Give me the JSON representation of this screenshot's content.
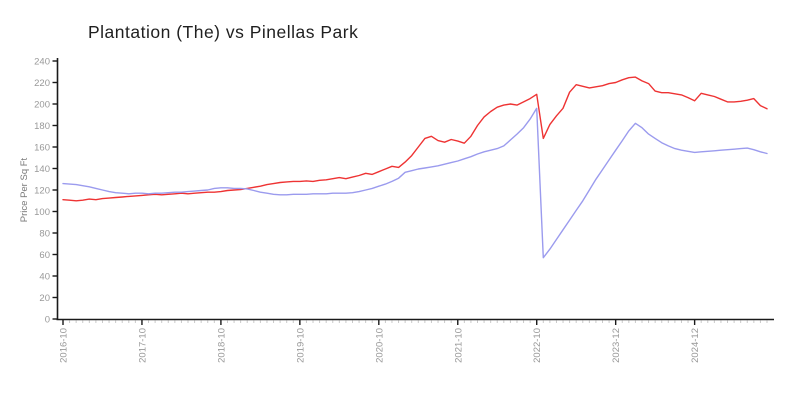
{
  "chart_data": {
    "type": "line",
    "title": "Plantation (The) vs Pinellas Park",
    "ylabel": "Price Per Sq Ft",
    "xlabel": "",
    "grid": false,
    "legend": "none",
    "ylim": [
      0,
      240
    ],
    "y_tick_step": 20,
    "x_tick_labels": [
      "2016-10",
      "2017-10",
      "2018-10",
      "2019-10",
      "2020-10",
      "2021-10",
      "2022-10",
      "2023-12",
      "2024-12"
    ],
    "x_tick_interval": 12,
    "n_points": 108,
    "axis_color": "#1a1a1a",
    "minor_tick_color": "#c9c9c9",
    "tick_label_color": "#999999",
    "series": [
      {
        "name": "Plantation (The)",
        "color": "#ee3333",
        "values": [
          111,
          110.5,
          110,
          110.5,
          111.5,
          111,
          112,
          112.5,
          113,
          113.5,
          114,
          114.5,
          115,
          115.5,
          116,
          115.5,
          116,
          116.5,
          117,
          116.5,
          117,
          117.5,
          118,
          118,
          118.5,
          119.5,
          120,
          120.5,
          121.5,
          122.5,
          123.5,
          125,
          126,
          127,
          127.5,
          128,
          128,
          128.5,
          128,
          129,
          129.5,
          130.5,
          131.5,
          130.5,
          132,
          133.5,
          135.5,
          134.5,
          137,
          139.5,
          142,
          141,
          146,
          152,
          160,
          168,
          170,
          166,
          164.5,
          167,
          165.5,
          163.5,
          170,
          180,
          188,
          193,
          197,
          199,
          200,
          199,
          202,
          205,
          209,
          168,
          181,
          189,
          196,
          211,
          218,
          216.5,
          215,
          216,
          217,
          219,
          220,
          222.5,
          224.5,
          225,
          221.5,
          219,
          212,
          210.5,
          210.5,
          209.5,
          208.5,
          206,
          203,
          210,
          208.5,
          207,
          204.5,
          202,
          202,
          202.5,
          203.5,
          205,
          198.5,
          195.5
        ]
      },
      {
        "name": "Pinellas Park",
        "color": "#9b9bee",
        "values": [
          126,
          125.5,
          125,
          124,
          123,
          121.5,
          120,
          118.5,
          117.5,
          117,
          116.5,
          117,
          117,
          116.5,
          117,
          117,
          117.5,
          118,
          118,
          118.5,
          119,
          119.5,
          120,
          121.5,
          122,
          122,
          121.5,
          121.5,
          121,
          119.5,
          118,
          117,
          116,
          115.5,
          115.5,
          116,
          116,
          116,
          116.5,
          116.5,
          116.5,
          117,
          117,
          117,
          117.5,
          118.5,
          120,
          121.5,
          123.5,
          125.5,
          128,
          131,
          136.5,
          138,
          139.5,
          140.5,
          141.5,
          142.5,
          144,
          145.5,
          147,
          149,
          151,
          153.5,
          155.5,
          157,
          158.5,
          161,
          166.5,
          172,
          178,
          186,
          196,
          57,
          65,
          74,
          83,
          92,
          101,
          110,
          120,
          130,
          139,
          148,
          157,
          166,
          175,
          182,
          178,
          172,
          168,
          164,
          161,
          158.5,
          157,
          156,
          155,
          155.5,
          156,
          156.5,
          157,
          157.5,
          158,
          158.5,
          159,
          157.5,
          155.5,
          154
        ]
      }
    ]
  }
}
